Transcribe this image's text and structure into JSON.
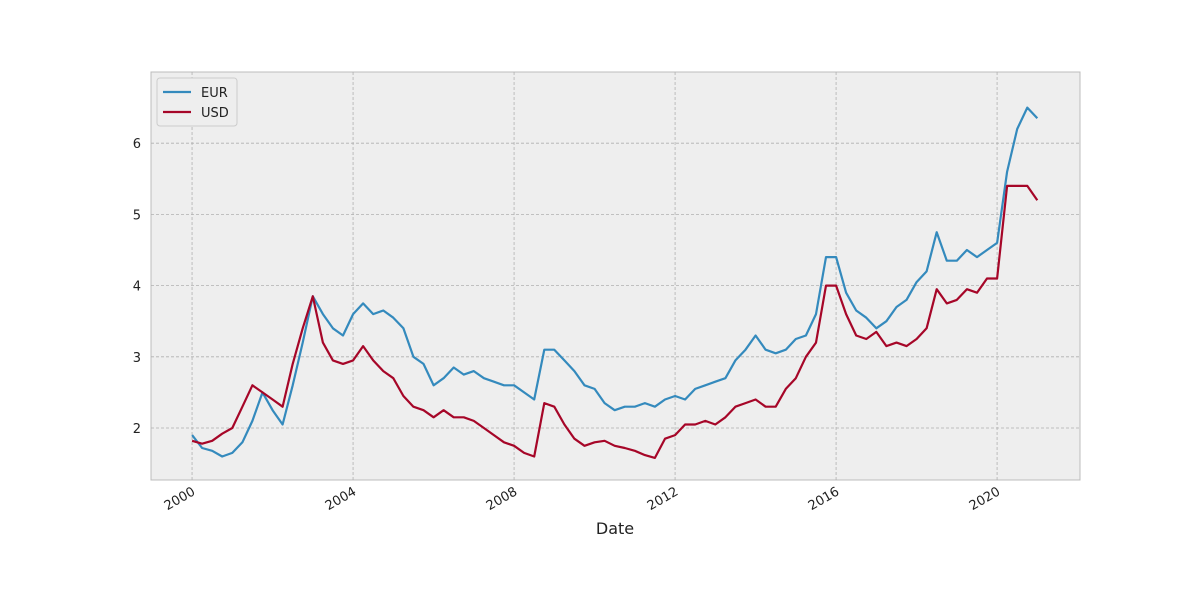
{
  "chart_data": {
    "type": "line",
    "x_label": "Date",
    "x": [
      2000,
      2000.25,
      2000.5,
      2000.75,
      2001,
      2001.25,
      2001.5,
      2001.75,
      2002,
      2002.25,
      2002.5,
      2002.75,
      2003,
      2003.25,
      2003.5,
      2003.75,
      2004,
      2004.25,
      2004.5,
      2004.75,
      2005,
      2005.25,
      2005.5,
      2005.75,
      2006,
      2006.25,
      2006.5,
      2006.75,
      2007,
      2007.25,
      2007.5,
      2007.75,
      2008,
      2008.25,
      2008.5,
      2008.75,
      2009,
      2009.25,
      2009.5,
      2009.75,
      2010,
      2010.25,
      2010.5,
      2010.75,
      2011,
      2011.25,
      2011.5,
      2011.75,
      2012,
      2012.25,
      2012.5,
      2012.75,
      2013,
      2013.25,
      2013.5,
      2013.75,
      2014,
      2014.25,
      2014.5,
      2014.75,
      2015,
      2015.25,
      2015.5,
      2015.75,
      2016,
      2016.25,
      2016.5,
      2016.75,
      2017,
      2017.25,
      2017.5,
      2017.75,
      2018,
      2018.25,
      2018.5,
      2018.75,
      2019,
      2019.25,
      2019.5,
      2019.75,
      2020,
      2020.25,
      2020.5,
      2020.75,
      2021
    ],
    "series": [
      {
        "name": "EUR",
        "color": "#348ABD",
        "values": [
          1.9,
          1.72,
          1.68,
          1.6,
          1.65,
          1.8,
          2.1,
          2.5,
          2.25,
          2.05,
          2.6,
          3.2,
          3.85,
          3.6,
          3.4,
          3.3,
          3.6,
          3.75,
          3.6,
          3.65,
          3.55,
          3.4,
          3.0,
          2.9,
          2.6,
          2.7,
          2.85,
          2.75,
          2.8,
          2.7,
          2.65,
          2.6,
          2.6,
          2.5,
          2.4,
          3.1,
          3.1,
          2.95,
          2.8,
          2.6,
          2.55,
          2.35,
          2.25,
          2.3,
          2.3,
          2.35,
          2.3,
          2.4,
          2.45,
          2.4,
          2.55,
          2.6,
          2.65,
          2.7,
          2.95,
          3.1,
          3.3,
          3.1,
          3.05,
          3.1,
          3.25,
          3.3,
          3.6,
          4.4,
          4.4,
          3.9,
          3.65,
          3.55,
          3.4,
          3.5,
          3.7,
          3.8,
          4.05,
          4.2,
          4.75,
          4.35,
          4.35,
          4.5,
          4.4,
          4.5,
          4.6,
          5.6,
          6.2,
          6.5,
          6.35
        ]
      },
      {
        "name": "USD",
        "color": "#A60628",
        "values": [
          1.82,
          1.78,
          1.82,
          1.92,
          2.0,
          2.3,
          2.6,
          2.5,
          2.4,
          2.3,
          2.9,
          3.4,
          3.85,
          3.2,
          2.95,
          2.9,
          2.95,
          3.15,
          2.95,
          2.8,
          2.7,
          2.45,
          2.3,
          2.25,
          2.15,
          2.25,
          2.15,
          2.15,
          2.1,
          2.0,
          1.9,
          1.8,
          1.75,
          1.65,
          1.6,
          2.35,
          2.3,
          2.05,
          1.85,
          1.75,
          1.8,
          1.82,
          1.75,
          1.72,
          1.68,
          1.62,
          1.58,
          1.85,
          1.9,
          2.05,
          2.05,
          2.1,
          2.05,
          2.15,
          2.3,
          2.35,
          2.4,
          2.3,
          2.3,
          2.55,
          2.7,
          3.0,
          3.2,
          4.0,
          4.0,
          3.6,
          3.3,
          3.25,
          3.35,
          3.15,
          3.2,
          3.15,
          3.25,
          3.4,
          3.95,
          3.75,
          3.8,
          3.95,
          3.9,
          4.1,
          4.1,
          5.4,
          5.4,
          5.4,
          5.2
        ]
      }
    ],
    "xlim": [
      1998.98,
      2022.06
    ],
    "xticks": [
      2000,
      2004,
      2008,
      2012,
      2016,
      2020
    ],
    "ylim": [
      1.27,
      7.0
    ],
    "yticks": [
      2,
      3,
      4,
      5,
      6
    ],
    "grid": true,
    "legend": "upper-left"
  }
}
